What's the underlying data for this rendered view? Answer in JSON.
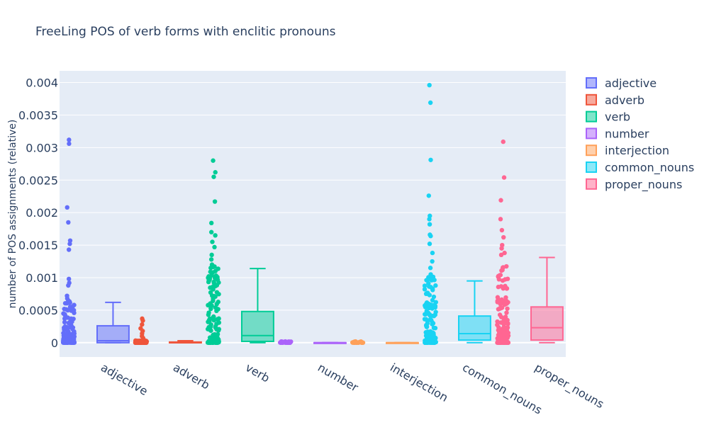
{
  "chart_data": {
    "type": "box",
    "title": "FreeLing POS of verb forms with enclitic pronouns",
    "ylabel": "number of POS assignments (relative)",
    "xlabel": "",
    "ylim": [
      -0.00022,
      0.00418
    ],
    "yticks": [
      0,
      0.0005,
      0.001,
      0.0015,
      0.002,
      0.0025,
      0.003,
      0.0035,
      0.004
    ],
    "ytick_labels": [
      "0",
      "0.0005",
      "0.001",
      "0.0015",
      "0.002",
      "0.0025",
      "0.003",
      "0.0035",
      "0.004"
    ],
    "categories": [
      "adjective",
      "adverb",
      "verb",
      "number",
      "interjection",
      "common_nouns",
      "proper_nouns"
    ],
    "legend_position": "top-right",
    "grid": true,
    "series": [
      {
        "name": "adjective",
        "color": "#636efa",
        "q1": 0.0,
        "median": 3e-05,
        "q3": 0.00026,
        "whisker_low": 0.0,
        "whisker_high": 0.00062,
        "outliers": [
          0.00312,
          0.00306,
          0.00208,
          0.00185,
          0.00157,
          0.00152,
          0.00143,
          0.00098,
          0.00092,
          0.00088,
          0.00072,
          0.00068,
          0.00065
        ]
      },
      {
        "name": "adverb",
        "color": "#ef553b",
        "q1": 0.0,
        "median": 0.0,
        "q3": 1e-05,
        "whisker_low": 0.0,
        "whisker_high": 3e-05,
        "outliers": [
          0.00037,
          0.00034,
          0.00028,
          0.00022,
          0.00018,
          0.00014,
          0.0001,
          7e-05
        ]
      },
      {
        "name": "verb",
        "color": "#00cc96",
        "q1": 2e-05,
        "median": 0.00011,
        "q3": 0.00048,
        "whisker_low": 0.0,
        "whisker_high": 0.00114,
        "outliers": [
          0.0028,
          0.00262,
          0.00255,
          0.00217,
          0.00184,
          0.0017,
          0.00165,
          0.00155,
          0.00147,
          0.00135,
          0.00128,
          0.0012,
          0.00117
        ]
      },
      {
        "name": "number",
        "color": "#ab63fa",
        "q1": 0.0,
        "median": 0.0,
        "q3": 0.0,
        "whisker_low": 0.0,
        "whisker_high": 0.0,
        "outliers": []
      },
      {
        "name": "interjection",
        "color": "#ffa15a",
        "q1": 0.0,
        "median": 0.0,
        "q3": 0.0,
        "whisker_low": 0.0,
        "whisker_high": 0.0,
        "outliers": []
      },
      {
        "name": "common_nouns",
        "color": "#19d3f3",
        "q1": 4e-05,
        "median": 0.00014,
        "q3": 0.00041,
        "whisker_low": 0.0,
        "whisker_high": 0.00095,
        "outliers": [
          0.00396,
          0.00369,
          0.00281,
          0.00226,
          0.00195,
          0.0019,
          0.00182,
          0.00166,
          0.00164,
          0.00152,
          0.00138,
          0.00125,
          0.00115,
          0.00105,
          0.001
        ]
      },
      {
        "name": "proper_nouns",
        "color": "#ff6692",
        "q1": 4e-05,
        "median": 0.00023,
        "q3": 0.00055,
        "whisker_low": 0.0,
        "whisker_high": 0.00131,
        "outliers": [
          0.00309,
          0.00254,
          0.00219,
          0.0019,
          0.00173,
          0.00162,
          0.0015,
          0.00145,
          0.00138,
          0.00135
        ]
      }
    ]
  }
}
